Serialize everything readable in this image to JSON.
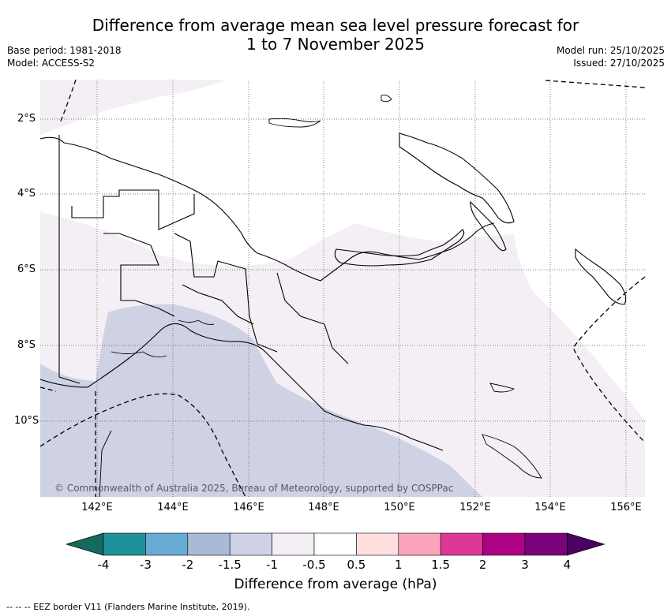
{
  "header": {
    "title_line1": "Difference from average mean sea level pressure forecast for",
    "title_line2": "1 to 7 November 2025",
    "base_period": "Base period: 1981-2018",
    "model": "Model: ACCESS-S2",
    "model_run": "Model run: 25/10/2025",
    "issued": "Issued: 27/10/2025"
  },
  "map": {
    "copyright": "© Commonwealth of Australia 2025, Bureau of Meteorology, supported by COSPPac",
    "longitude_labels": [
      "142°E",
      "144°E",
      "146°E",
      "148°E",
      "150°E",
      "152°E",
      "154°E",
      "156°E"
    ],
    "latitude_labels": [
      "2°S",
      "4°S",
      "6°S",
      "8°S",
      "10°S"
    ],
    "shading_colors": {
      "light_negative": "#f4eef5",
      "negative_1_5": "#cfd1e4"
    }
  },
  "colorbar": {
    "title": "Difference from average (hPa)",
    "labels": [
      "-4",
      "-3",
      "-2",
      "-1.5",
      "-1",
      "-0.5",
      "0.5",
      "1",
      "1.5",
      "2",
      "3",
      "4"
    ],
    "colors": [
      "#126b5e",
      "#1f9299",
      "#67aad3",
      "#aab9d6",
      "#cfd1e4",
      "#f4eef5",
      "#ffffff",
      "#ffdfdf",
      "#f9a3bd",
      "#df3795",
      "#ac0283",
      "#7a037c",
      "#4a0163"
    ]
  },
  "footnote": "--  --  -- EEZ border V11 (Flanders Marine Institute, 2019)."
}
